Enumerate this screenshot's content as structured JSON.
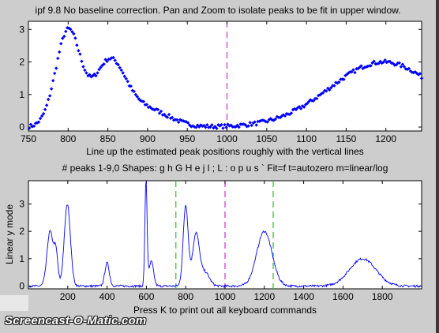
{
  "window": {
    "title": "ipf 9.8 No baseline correction. Pan and Zoom to isolate peaks to be fit in upper window.",
    "watermark": "Screencast-O-Matic.com"
  },
  "top_panel": {
    "xlabel": "Line up the estimated peak positions roughly with the vertical lines"
  },
  "bottom_panel": {
    "title": "# peaks 1-9,0   Shapes: g h G H e j l ; L : o p u s `   Fit=f   t=autozero   m=linear/log",
    "ylabel": "Linear y mode",
    "xlabel": "Press K to print out all keyboard commands"
  },
  "colors": {
    "background": "#cdcdcd",
    "axes_background": "#ffffff",
    "data": "#0000ff",
    "center_marker": "#cc33cc",
    "window_marker": "#33bb33"
  },
  "chart_data": [
    {
      "type": "scatter",
      "name": "upper",
      "xlim": [
        750,
        1245
      ],
      "ylim": [
        -0.12,
        3.25
      ],
      "xticks": [
        750,
        800,
        850,
        900,
        950,
        1000,
        1050,
        1100,
        1150,
        1200
      ],
      "yticks": [
        0,
        1,
        2,
        3
      ],
      "grid": false,
      "markers": [
        {
          "x": 1000,
          "style": "magenta-dashed"
        }
      ],
      "peaks": [
        {
          "x": 800,
          "height": 2.95,
          "width": 22
        },
        {
          "x": 852,
          "height": 1.95,
          "width": 28
        },
        {
          "x": 898,
          "height": 0.55,
          "width": 40
        },
        {
          "x": 1197,
          "height": 2.0,
          "width": 95
        }
      ]
    },
    {
      "type": "line",
      "name": "lower",
      "xlim": [
        0,
        2000
      ],
      "ylim": [
        -0.1,
        3.85
      ],
      "xticks": [
        200,
        400,
        600,
        800,
        1000,
        1200,
        1400,
        1600,
        1800
      ],
      "yticks": [
        0,
        1,
        2,
        3
      ],
      "grid": false,
      "markers": [
        {
          "x": 1000,
          "style": "magenta-dashed"
        },
        {
          "x": 750,
          "style": "green-dashed"
        },
        {
          "x": 1245,
          "style": "green-dashed"
        }
      ],
      "peaks": [
        {
          "x": 110,
          "height": 2.0,
          "width": 22
        },
        {
          "x": 140,
          "height": 1.15,
          "width": 14
        },
        {
          "x": 198,
          "height": 3.0,
          "width": 22
        },
        {
          "x": 400,
          "height": 0.85,
          "width": 16
        },
        {
          "x": 598,
          "height": 3.85,
          "width": 8
        },
        {
          "x": 625,
          "height": 0.9,
          "width": 16
        },
        {
          "x": 800,
          "height": 2.95,
          "width": 18
        },
        {
          "x": 852,
          "height": 1.9,
          "width": 24
        },
        {
          "x": 898,
          "height": 0.5,
          "width": 32
        },
        {
          "x": 1200,
          "height": 2.0,
          "width": 55
        },
        {
          "x": 1700,
          "height": 1.0,
          "width": 95
        }
      ]
    }
  ]
}
